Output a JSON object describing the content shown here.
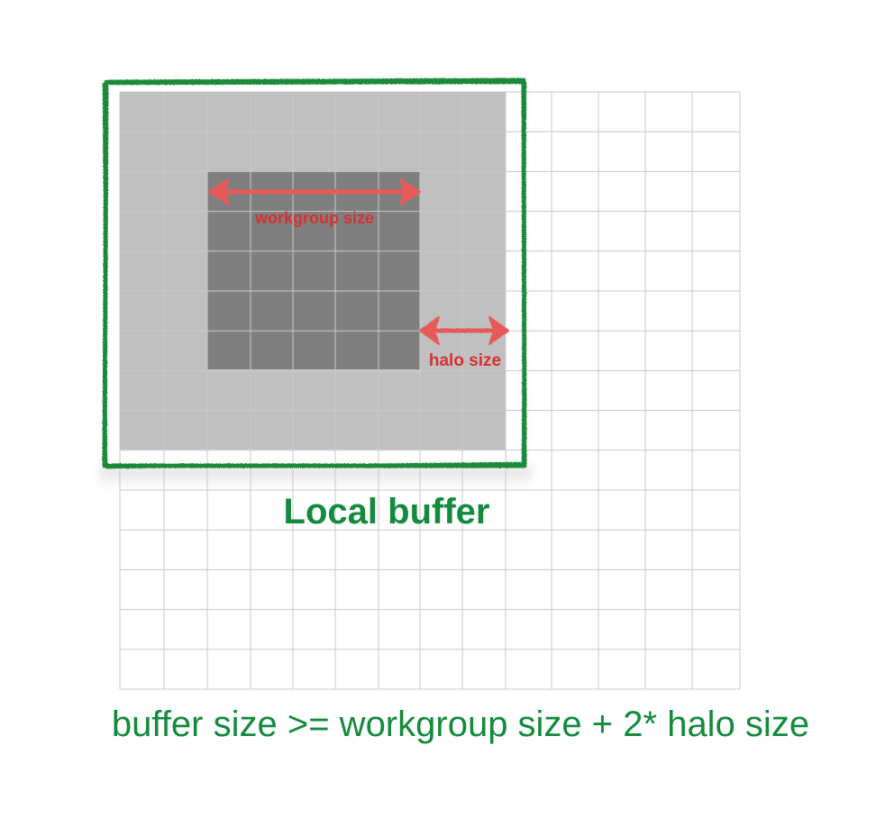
{
  "diagram": {
    "grid": {
      "columns": 14,
      "rows": 15
    },
    "local_buffer_cells": {
      "columns": 9,
      "rows": 9
    },
    "workgroup_cells": {
      "start": 2,
      "columns": 5,
      "rows": 5
    },
    "labels": {
      "workgroup": "workgroup size",
      "halo": "halo size",
      "local_buffer": "Local buffer",
      "equation": "buffer size >= workgroup size + 2* halo size"
    },
    "colors": {
      "grid_line": "#c8c8c8",
      "buffer_fill": "#c0c0c0",
      "workgroup_fill": "#7f7f7f",
      "border_green": "#1a8a3a",
      "arrow_red": "#e85a5a",
      "label_red": "#d83030",
      "text_green": "#138a3c"
    }
  }
}
